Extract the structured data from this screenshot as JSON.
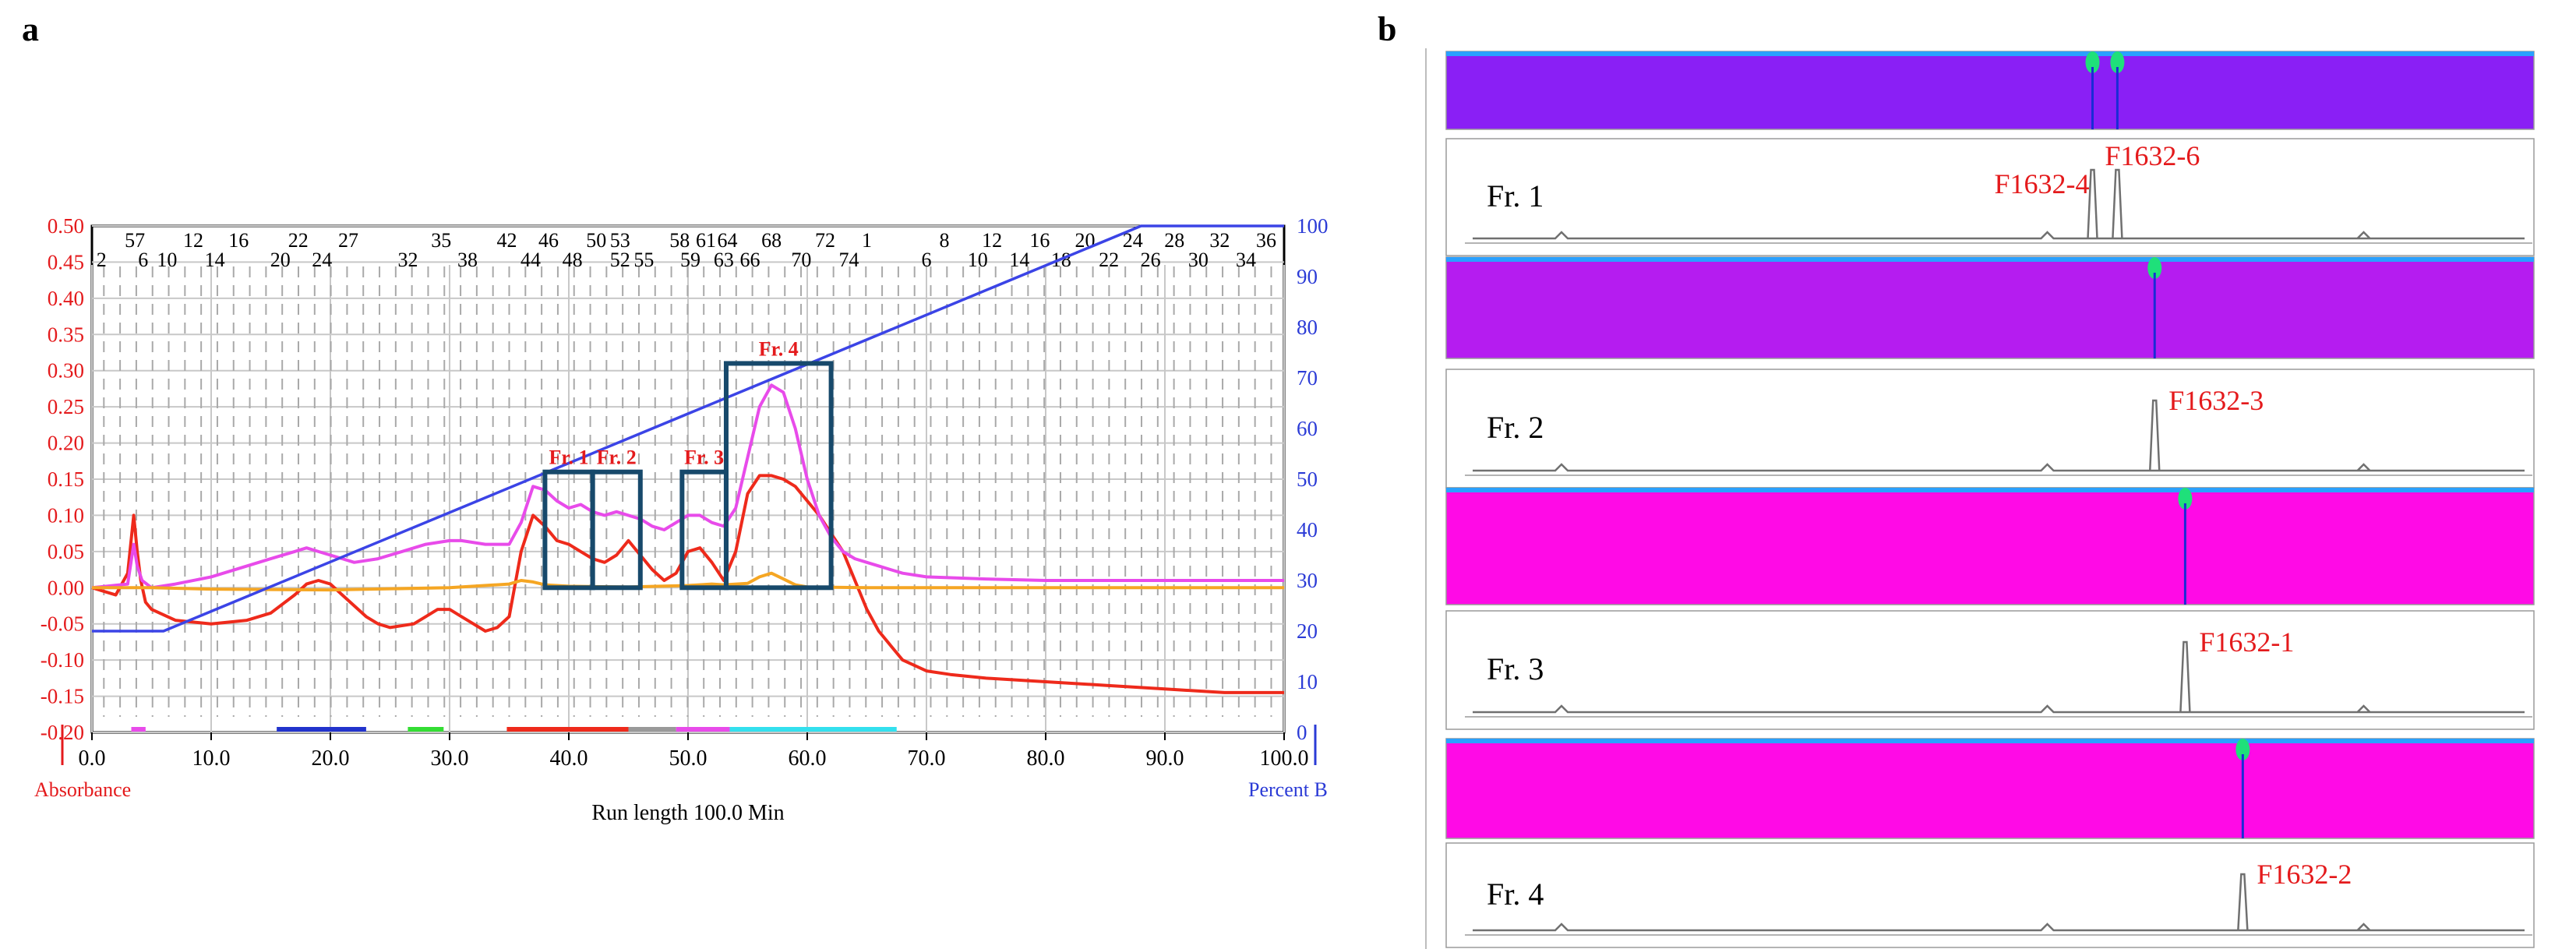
{
  "panels": [
    {
      "label": "a",
      "chart_data": {
        "type": "line",
        "title": "",
        "xlabel": "Run length 100.0 Min",
        "ylabel_left": "Absorbance",
        "ylabel_right": "Percent B",
        "xlim": [
          0,
          100
        ],
        "ylim_left": [
          -0.2,
          0.5
        ],
        "ylim_right": [
          0,
          100
        ],
        "x_ticks": [
          0,
          10,
          20,
          30,
          40,
          50,
          60,
          70,
          80,
          90,
          100
        ],
        "x_tick_labels": [
          "0.0",
          "10.0",
          "20.0",
          "30.0",
          "40.0",
          "50.0",
          "60.0",
          "70.0",
          "80.0",
          "90.0",
          "100.0"
        ],
        "y_left_ticks": [
          0.5,
          0.45,
          0.4,
          0.35,
          0.3,
          0.25,
          0.2,
          0.15,
          0.1,
          0.05,
          0.0,
          -0.05,
          -0.1,
          -0.15,
          -0.2
        ],
        "y_left_tick_labels": [
          "0.50",
          "0.45",
          "0.40",
          "0.35",
          "0.30",
          "0.25",
          "0.20",
          "0.15",
          "0.10",
          "0.05",
          "0.00",
          "-0.05",
          "-0.10",
          "-0.15",
          "-0.20"
        ],
        "y_right_ticks": [
          100,
          90,
          80,
          70,
          60,
          50,
          40,
          30,
          20,
          10,
          0
        ],
        "y_right_tick_labels": [
          "100",
          "90",
          "80",
          "70",
          "60",
          "50",
          "40",
          "30",
          "20",
          "10",
          "0"
        ],
        "tube_labels_top": [
          {
            "x": 3.6,
            "t": "57"
          },
          {
            "x": 8.5,
            "t": "12"
          },
          {
            "x": 12.3,
            "t": "16"
          },
          {
            "x": 17.3,
            "t": "22"
          },
          {
            "x": 21.5,
            "t": "27"
          },
          {
            "x": 29.3,
            "t": "35"
          },
          {
            "x": 34.8,
            "t": "42"
          },
          {
            "x": 38.3,
            "t": "46"
          },
          {
            "x": 42.3,
            "t": "50"
          },
          {
            "x": 44.3,
            "t": "53"
          },
          {
            "x": 49.3,
            "t": "58"
          },
          {
            "x": 51.5,
            "t": "61"
          },
          {
            "x": 53.3,
            "t": "64"
          },
          {
            "x": 57.0,
            "t": "68"
          },
          {
            "x": 61.5,
            "t": "72"
          },
          {
            "x": 65.0,
            "t": "1"
          },
          {
            "x": 71.5,
            "t": "8"
          },
          {
            "x": 75.5,
            "t": "12"
          },
          {
            "x": 79.5,
            "t": "16"
          },
          {
            "x": 83.3,
            "t": "20"
          },
          {
            "x": 87.3,
            "t": "24"
          },
          {
            "x": 90.8,
            "t": "28"
          },
          {
            "x": 94.6,
            "t": "32"
          },
          {
            "x": 98.5,
            "t": "36"
          }
        ],
        "tube_labels_bottom": [
          {
            "x": 0.8,
            "t": "2"
          },
          {
            "x": 4.3,
            "t": "6"
          },
          {
            "x": 6.3,
            "t": "10"
          },
          {
            "x": 10.3,
            "t": "14"
          },
          {
            "x": 15.8,
            "t": "20"
          },
          {
            "x": 19.3,
            "t": "24"
          },
          {
            "x": 26.5,
            "t": "32"
          },
          {
            "x": 31.5,
            "t": "38"
          },
          {
            "x": 36.8,
            "t": "44"
          },
          {
            "x": 40.3,
            "t": "48"
          },
          {
            "x": 44.3,
            "t": "52"
          },
          {
            "x": 46.3,
            "t": "55"
          },
          {
            "x": 50.2,
            "t": "59"
          },
          {
            "x": 53.0,
            "t": "63"
          },
          {
            "x": 55.2,
            "t": "66"
          },
          {
            "x": 59.5,
            "t": "70"
          },
          {
            "x": 63.5,
            "t": "74"
          },
          {
            "x": 70.0,
            "t": "6"
          },
          {
            "x": 74.3,
            "t": "10"
          },
          {
            "x": 77.8,
            "t": "14"
          },
          {
            "x": 81.3,
            "t": "18"
          },
          {
            "x": 85.3,
            "t": "22"
          },
          {
            "x": 88.8,
            "t": "26"
          },
          {
            "x": 92.8,
            "t": "30"
          },
          {
            "x": 96.8,
            "t": "34"
          }
        ],
        "series": [
          {
            "name": "Absorbance (red)",
            "color": "#ee2a1b",
            "axis": "left",
            "x": [
              0,
              2,
              3,
              3.5,
              3.8,
              4.1,
              4.5,
              5,
              7,
              10,
              13,
              15,
              17,
              18,
              19,
              20,
              21,
              22,
              23,
              24,
              25,
              27,
              28,
              29,
              30,
              31,
              32,
              33,
              34,
              35,
              36,
              37,
              38,
              39,
              40,
              41,
              42,
              43,
              44,
              45,
              46,
              47,
              48,
              49,
              50,
              51,
              52,
              53,
              54,
              55,
              56,
              57,
              58,
              59,
              60,
              61,
              62,
              63,
              64,
              65,
              66,
              67,
              68,
              70,
              72,
              75,
              80,
              85,
              90,
              95,
              100
            ],
            "y": [
              0,
              -0.01,
              0.02,
              0.1,
              0.05,
              0.01,
              -0.02,
              -0.03,
              -0.045,
              -0.05,
              -0.045,
              -0.035,
              -0.01,
              0.005,
              0.01,
              0.005,
              -0.01,
              -0.025,
              -0.04,
              -0.05,
              -0.055,
              -0.05,
              -0.04,
              -0.03,
              -0.03,
              -0.04,
              -0.05,
              -0.06,
              -0.055,
              -0.04,
              0.05,
              0.1,
              0.085,
              0.065,
              0.06,
              0.05,
              0.04,
              0.035,
              0.045,
              0.065,
              0.045,
              0.025,
              0.01,
              0.02,
              0.05,
              0.055,
              0.035,
              0.01,
              0.05,
              0.13,
              0.155,
              0.155,
              0.15,
              0.14,
              0.12,
              0.1,
              0.075,
              0.05,
              0.01,
              -0.03,
              -0.06,
              -0.08,
              -0.1,
              -0.115,
              -0.12,
              -0.125,
              -0.13,
              -0.135,
              -0.14,
              -0.145,
              -0.145
            ]
          },
          {
            "name": "Absorbance (magenta)",
            "color": "#e84bea",
            "axis": "left",
            "x": [
              0,
              3,
              3.5,
              3.8,
              4.2,
              5,
              7,
              10,
              13,
              15,
              17,
              18,
              19,
              20,
              21,
              22,
              24,
              26,
              28,
              30,
              31,
              33,
              35,
              36,
              37,
              38,
              39,
              40,
              41,
              42,
              43,
              44,
              45,
              46,
              47,
              48,
              49,
              50,
              51,
              52,
              53,
              54,
              55,
              56,
              57,
              58,
              59,
              60,
              61,
              62,
              63,
              64,
              65,
              66,
              67,
              68,
              70,
              75,
              80,
              90,
              100
            ],
            "y": [
              0,
              0.005,
              0.06,
              0.03,
              0.01,
              0,
              0.005,
              0.015,
              0.03,
              0.04,
              0.05,
              0.055,
              0.05,
              0.045,
              0.04,
              0.035,
              0.04,
              0.05,
              0.06,
              0.065,
              0.065,
              0.06,
              0.06,
              0.09,
              0.14,
              0.135,
              0.12,
              0.11,
              0.115,
              0.105,
              0.1,
              0.105,
              0.1,
              0.095,
              0.085,
              0.08,
              0.09,
              0.1,
              0.1,
              0.09,
              0.085,
              0.11,
              0.18,
              0.25,
              0.28,
              0.27,
              0.22,
              0.15,
              0.1,
              0.07,
              0.05,
              0.04,
              0.035,
              0.03,
              0.025,
              0.02,
              0.015,
              0.012,
              0.01,
              0.01,
              0.01
            ]
          },
          {
            "name": "Absorbance (orange)",
            "color": "#f5a623",
            "axis": "left",
            "x": [
              0,
              5,
              10,
              20,
              30,
              35,
              36,
              37,
              38,
              40,
              45,
              50,
              52,
              53,
              55,
              56,
              57,
              58,
              59,
              60,
              65,
              70,
              80,
              90,
              100
            ],
            "y": [
              0,
              0,
              -0.002,
              -0.003,
              0,
              0.005,
              0.01,
              0.008,
              0.004,
              0.002,
              0.001,
              0.003,
              0.005,
              0.004,
              0.006,
              0.015,
              0.02,
              0.012,
              0.004,
              0.001,
              0,
              0,
              0,
              0,
              0
            ]
          },
          {
            "name": "Percent B",
            "color": "#3b44e6",
            "axis": "right",
            "x": [
              0,
              6,
              88,
              100
            ],
            "y": [
              20,
              20,
              100,
              100
            ]
          }
        ],
        "fraction_boxes": [
          {
            "label": "Fr. 1",
            "x0": 38,
            "x1": 42,
            "y0": 0,
            "y1": 0.16
          },
          {
            "label": "Fr. 2",
            "x0": 42,
            "x1": 46,
            "y0": 0,
            "y1": 0.16
          },
          {
            "label": "Fr. 3",
            "x0": 49.5,
            "x1": 53.2,
            "y0": 0,
            "y1": 0.16
          },
          {
            "label": "Fr. 4",
            "x0": 53.2,
            "x1": 62,
            "y0": 0,
            "y1": 0.31
          }
        ],
        "collection_bars": [
          {
            "x0": 3.3,
            "x1": 4.5,
            "color": "#e84bea"
          },
          {
            "x0": 15.5,
            "x1": 23,
            "color": "#2233cc"
          },
          {
            "x0": 26.5,
            "x1": 29.5,
            "color": "#33dd33"
          },
          {
            "x0": 34.8,
            "x1": 45,
            "color": "#ee2a1b"
          },
          {
            "x0": 45,
            "x1": 49,
            "color": "#999999"
          },
          {
            "x0": 49,
            "x1": 53.5,
            "color": "#e84bea"
          },
          {
            "x0": 53.5,
            "x1": 67.5,
            "color": "#33e0ee"
          }
        ]
      }
    },
    {
      "label": "b",
      "fraction_traces": [
        {
          "name": "Fr. 1",
          "peaks": [
            {
              "label": "F1632-4",
              "pos": 0.59
            },
            {
              "label": "F1632-6",
              "pos": 0.612
            }
          ],
          "heatmap_color": "#8a1ff5"
        },
        {
          "name": "Fr. 2",
          "peaks": [
            {
              "label": "F1632-3",
              "pos": 0.645
            }
          ],
          "heatmap_color": "#b51cf0"
        },
        {
          "name": "Fr. 3",
          "peaks": [
            {
              "label": "F1632-1",
              "pos": 0.672
            }
          ],
          "heatmap_color": "#ff0ae6"
        },
        {
          "name": "Fr. 4",
          "peaks": [
            {
              "label": "F1632-2",
              "pos": 0.723
            }
          ],
          "heatmap_color": "#ff0ae6"
        }
      ]
    }
  ]
}
